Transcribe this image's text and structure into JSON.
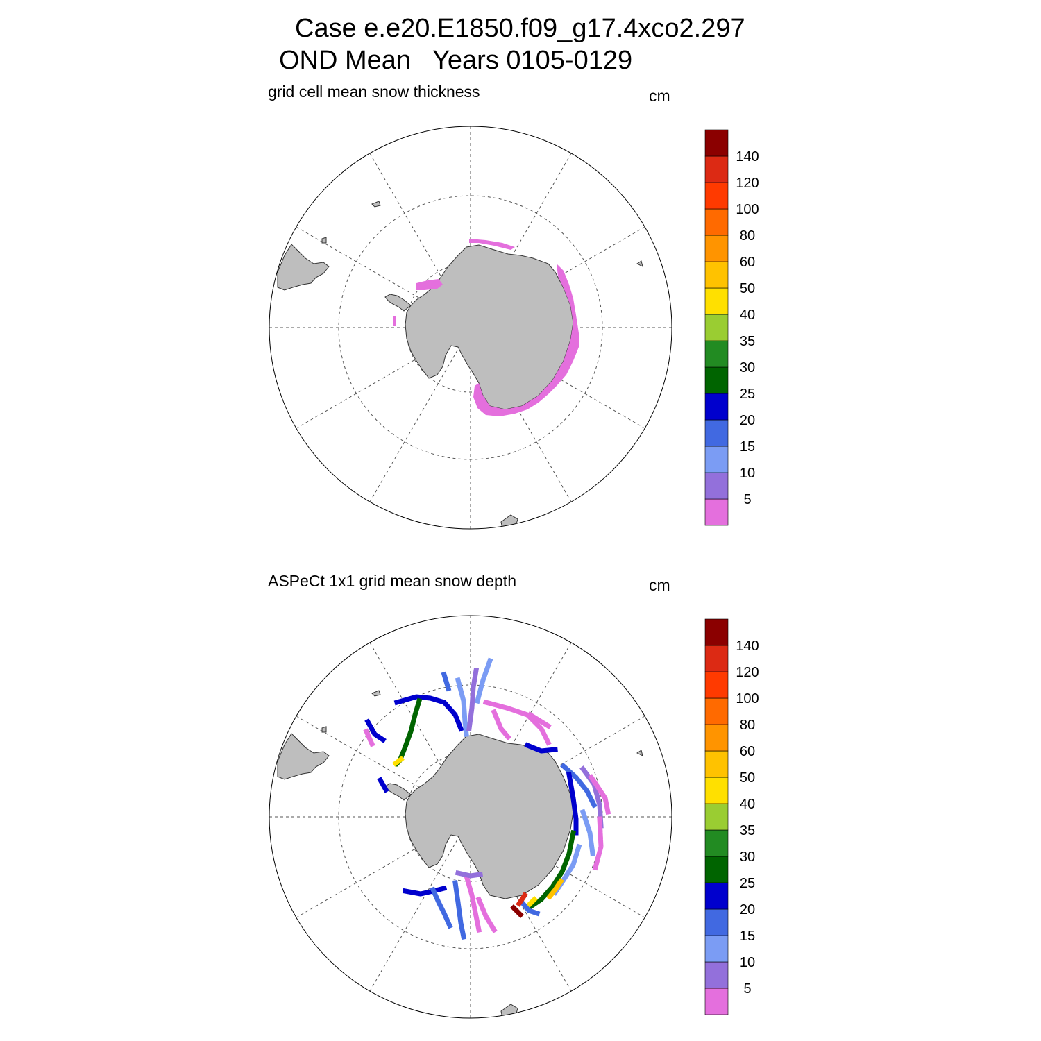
{
  "title": {
    "line1": "Case e.e20.E1850.f09_g17.4xco2.297",
    "line2": "OND Mean   Years 0105-0129"
  },
  "colorbar": {
    "labels": [
      "5",
      "10",
      "15",
      "20",
      "25",
      "30",
      "35",
      "40",
      "50",
      "60",
      "80",
      "100",
      "120",
      "140"
    ],
    "colors": [
      "#e46fdd",
      "#9370db",
      "#7b9cf4",
      "#4169e1",
      "#0000cd",
      "#006400",
      "#228b22",
      "#9acd32",
      "#ffe000",
      "#ffc200",
      "#ff9400",
      "#ff6a00",
      "#ff3a00",
      "#dc2a14",
      "#8b0000"
    ]
  },
  "land_color": "#bebebe",
  "panels": [
    {
      "title": "grid cell mean snow thickness",
      "units": "cm"
    },
    {
      "title": "ASPeCt 1x1 grid mean snow depth",
      "units": "cm"
    }
  ]
}
